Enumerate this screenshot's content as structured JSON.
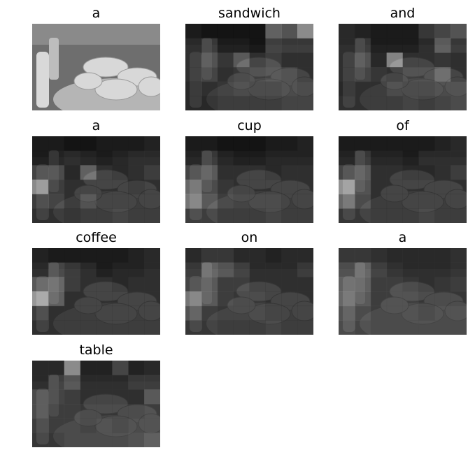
{
  "panels": [
    {
      "word": "a"
    },
    {
      "word": "sandwich"
    },
    {
      "word": "and"
    },
    {
      "word": "a"
    },
    {
      "word": "cup"
    },
    {
      "word": "of"
    },
    {
      "word": "coffee"
    },
    {
      "word": "on"
    },
    {
      "word": "a"
    },
    {
      "word": "table"
    }
  ]
}
